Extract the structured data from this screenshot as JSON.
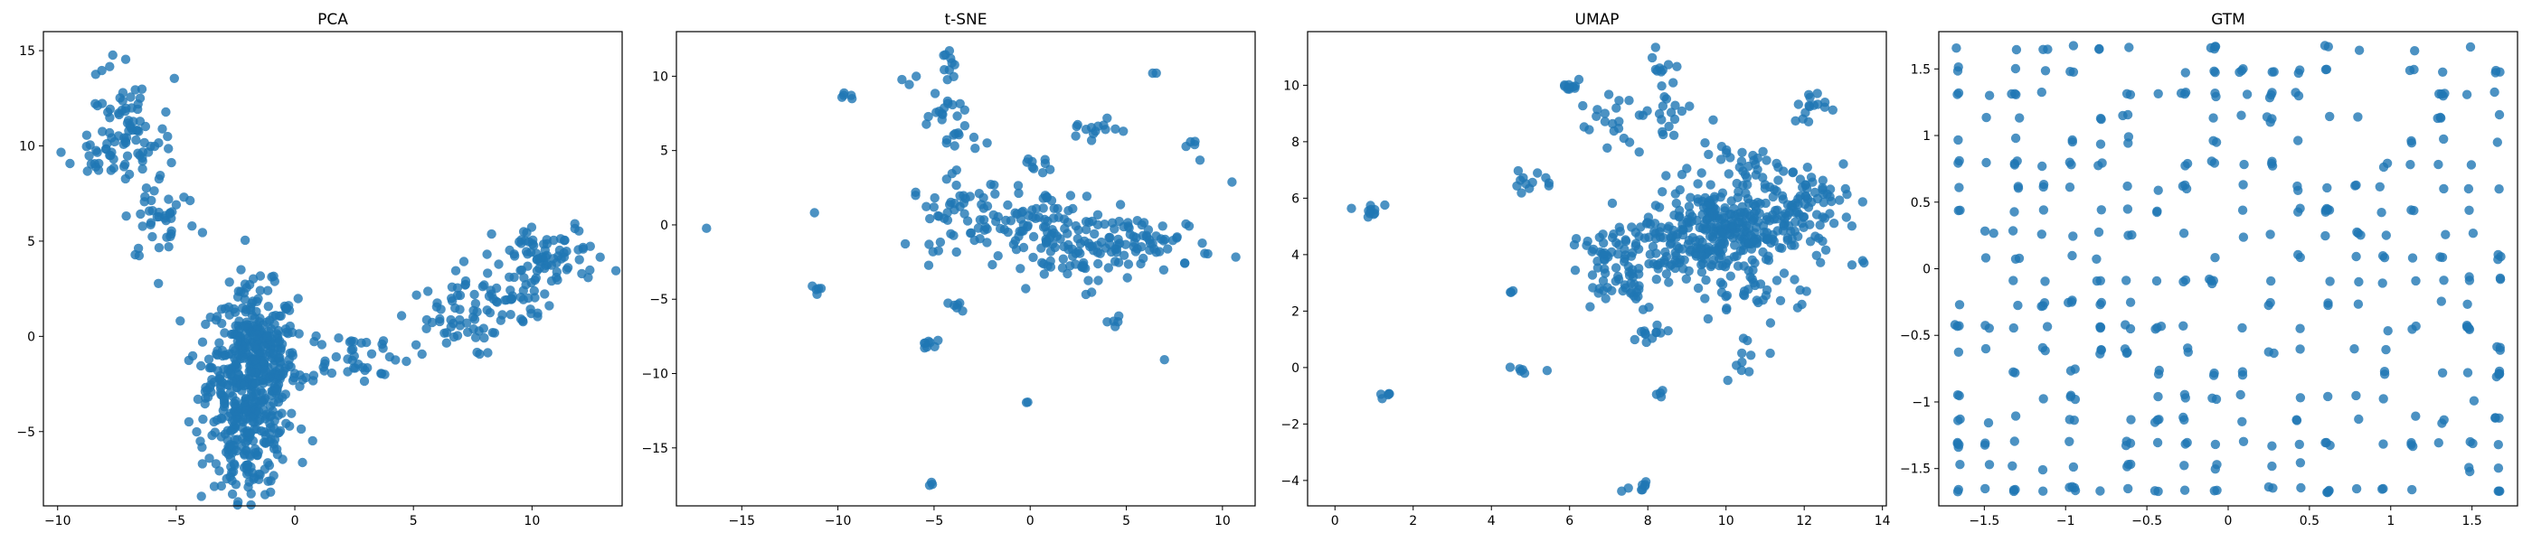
{
  "figure": {
    "marker_color": "#1f77b4"
  },
  "chart_data": [
    {
      "type": "scatter",
      "title": "PCA",
      "xlabel": "",
      "ylabel": "",
      "xlim": [
        -10.6,
        13.8
      ],
      "ylim": [
        -8.9,
        16.0
      ],
      "xticks": [
        -10,
        -5,
        0,
        5,
        10
      ],
      "yticks": [
        -5,
        0,
        5,
        10,
        15
      ],
      "clusters": [
        {
          "x": -1.7,
          "y": -1.5,
          "sx": 0.9,
          "sy": 2.0,
          "n": 420
        },
        {
          "x": -1.9,
          "y": -5.6,
          "sx": 0.9,
          "sy": 1.1,
          "n": 110
        },
        {
          "x": -3.2,
          "y": -3.0,
          "sx": 0.8,
          "sy": 1.2,
          "n": 40
        },
        {
          "x": -6.9,
          "y": 10.5,
          "sx": 0.9,
          "sy": 1.5,
          "n": 70
        },
        {
          "x": -5.6,
          "y": 6.2,
          "sx": 0.8,
          "sy": 1.2,
          "n": 40
        },
        {
          "x": -8.4,
          "y": 9.5,
          "sx": 0.5,
          "sy": 0.7,
          "n": 20
        },
        {
          "x": 2.5,
          "y": -1.0,
          "sx": 1.2,
          "sy": 0.7,
          "n": 45
        },
        {
          "x": 6.5,
          "y": 0.8,
          "sx": 1.1,
          "sy": 0.9,
          "n": 45
        },
        {
          "x": 8.8,
          "y": 2.2,
          "sx": 1.0,
          "sy": 0.9,
          "n": 55
        },
        {
          "x": 10.8,
          "y": 4.2,
          "sx": 1.2,
          "sy": 0.8,
          "n": 70
        },
        {
          "x": -7.5,
          "y": 14.4,
          "sx": 0.4,
          "sy": 0.5,
          "n": 5
        },
        {
          "x": -2.1,
          "y": -7.8,
          "sx": 0.5,
          "sy": 0.4,
          "n": 12
        }
      ]
    },
    {
      "type": "scatter",
      "title": "t-SNE",
      "xlabel": "",
      "ylabel": "",
      "xlim": [
        -18.4,
        11.7
      ],
      "ylim": [
        -18.9,
        13.0
      ],
      "xticks": [
        -15,
        -10,
        -5,
        0,
        5,
        10
      ],
      "yticks": [
        -15,
        -10,
        -5,
        0,
        5,
        10
      ],
      "clusters": [
        {
          "x": 0.5,
          "y": -0.2,
          "sx": 1.6,
          "sy": 1.3,
          "n": 90
        },
        {
          "x": 6.0,
          "y": -1.2,
          "sx": 1.8,
          "sy": 0.9,
          "n": 70
        },
        {
          "x": -3.5,
          "y": 0.8,
          "sx": 1.4,
          "sy": 1.2,
          "n": 55
        },
        {
          "x": 3.0,
          "y": -2.3,
          "sx": 1.0,
          "sy": 1.0,
          "n": 35
        },
        {
          "x": -4.4,
          "y": 7.5,
          "sx": 0.5,
          "sy": 0.6,
          "n": 16
        },
        {
          "x": -3.6,
          "y": 5.8,
          "sx": 0.5,
          "sy": 0.4,
          "n": 10
        },
        {
          "x": -4.2,
          "y": 10.6,
          "sx": 0.3,
          "sy": 0.8,
          "n": 10
        },
        {
          "x": 3.2,
          "y": 6.4,
          "sx": 0.7,
          "sy": 0.3,
          "n": 14
        },
        {
          "x": 0.2,
          "y": 4.0,
          "sx": 0.5,
          "sy": 0.4,
          "n": 9
        },
        {
          "x": -5.2,
          "y": -7.9,
          "sx": 0.3,
          "sy": 0.4,
          "n": 8
        },
        {
          "x": -3.7,
          "y": -5.3,
          "sx": 0.5,
          "sy": 0.2,
          "n": 6
        },
        {
          "x": -9.6,
          "y": 8.6,
          "sx": 0.2,
          "sy": 0.1,
          "n": 5
        },
        {
          "x": -11.1,
          "y": -4.6,
          "sx": 0.2,
          "sy": 0.2,
          "n": 5
        },
        {
          "x": 8.5,
          "y": 5.6,
          "sx": 0.3,
          "sy": 0.5,
          "n": 5
        },
        {
          "x": 4.5,
          "y": -6.5,
          "sx": 0.2,
          "sy": 0.3,
          "n": 5
        },
        {
          "x": -5.1,
          "y": -17.4,
          "sx": 0.05,
          "sy": 0.2,
          "n": 3
        },
        {
          "x": -0.1,
          "y": -12.0,
          "sx": 0.05,
          "sy": 0.1,
          "n": 2
        },
        {
          "x": -16.8,
          "y": -0.2,
          "sx": 0.05,
          "sy": 0.05,
          "n": 1
        },
        {
          "x": -11.3,
          "y": 0.7,
          "sx": 0.05,
          "sy": 0.05,
          "n": 1
        },
        {
          "x": 6.5,
          "y": 10.2,
          "sx": 0.05,
          "sy": 0.05,
          "n": 2
        },
        {
          "x": 7.0,
          "y": -9.1,
          "sx": 0.05,
          "sy": 0.05,
          "n": 1
        },
        {
          "x": 10.5,
          "y": 2.9,
          "sx": 0.05,
          "sy": 0.05,
          "n": 1
        },
        {
          "x": -6.2,
          "y": 9.6,
          "sx": 0.3,
          "sy": 0.4,
          "n": 3
        }
      ]
    },
    {
      "type": "scatter",
      "title": "UMAP",
      "xlabel": "",
      "ylabel": "",
      "xlim": [
        -0.7,
        14.1
      ],
      "ylim": [
        -4.9,
        11.9
      ],
      "xticks": [
        0,
        2,
        4,
        6,
        8,
        10,
        12,
        14
      ],
      "yticks": [
        -4,
        -2,
        0,
        2,
        4,
        6,
        8,
        10
      ],
      "clusters": [
        {
          "x": 9.8,
          "y": 4.8,
          "sx": 0.9,
          "sy": 0.8,
          "n": 260
        },
        {
          "x": 11.2,
          "y": 5.4,
          "sx": 0.9,
          "sy": 0.9,
          "n": 90
        },
        {
          "x": 8.0,
          "y": 4.2,
          "sx": 0.7,
          "sy": 0.7,
          "n": 70
        },
        {
          "x": 7.2,
          "y": 3.0,
          "sx": 0.6,
          "sy": 0.5,
          "n": 35
        },
        {
          "x": 10.9,
          "y": 2.6,
          "sx": 0.8,
          "sy": 0.4,
          "n": 30
        },
        {
          "x": 8.6,
          "y": 8.9,
          "sx": 0.5,
          "sy": 0.6,
          "n": 20
        },
        {
          "x": 10.4,
          "y": 7.3,
          "sx": 0.6,
          "sy": 0.5,
          "n": 25
        },
        {
          "x": 12.3,
          "y": 9.2,
          "sx": 0.3,
          "sy": 0.3,
          "n": 15
        },
        {
          "x": 12.4,
          "y": 6.2,
          "sx": 0.4,
          "sy": 0.4,
          "n": 25
        },
        {
          "x": 6.0,
          "y": 10.0,
          "sx": 0.1,
          "sy": 0.2,
          "n": 10
        },
        {
          "x": 8.3,
          "y": 10.6,
          "sx": 0.2,
          "sy": 0.3,
          "n": 10
        },
        {
          "x": 1.0,
          "y": 5.6,
          "sx": 0.25,
          "sy": 0.1,
          "n": 10
        },
        {
          "x": 5.0,
          "y": 6.6,
          "sx": 0.3,
          "sy": 0.2,
          "n": 12
        },
        {
          "x": 6.9,
          "y": 8.4,
          "sx": 0.4,
          "sy": 0.4,
          "n": 12
        },
        {
          "x": 6.7,
          "y": 4.2,
          "sx": 0.4,
          "sy": 0.3,
          "n": 12
        },
        {
          "x": 8.0,
          "y": 1.2,
          "sx": 0.4,
          "sy": 0.2,
          "n": 12
        },
        {
          "x": 10.5,
          "y": 0.5,
          "sx": 0.3,
          "sy": 0.4,
          "n": 10
        },
        {
          "x": 7.7,
          "y": -4.2,
          "sx": 0.2,
          "sy": 0.1,
          "n": 8
        },
        {
          "x": 4.9,
          "y": -0.1,
          "sx": 0.2,
          "sy": 0.15,
          "n": 6
        },
        {
          "x": 1.2,
          "y": -1.0,
          "sx": 0.1,
          "sy": 0.1,
          "n": 5
        },
        {
          "x": 8.3,
          "y": -0.9,
          "sx": 0.1,
          "sy": 0.1,
          "n": 4
        },
        {
          "x": 4.5,
          "y": 2.7,
          "sx": 0.05,
          "sy": 0.05,
          "n": 3
        },
        {
          "x": 13.5,
          "y": 3.7,
          "sx": 0.1,
          "sy": 0.05,
          "n": 3
        },
        {
          "x": 7.0,
          "y": 9.5,
          "sx": 0.3,
          "sy": 0.2,
          "n": 6
        }
      ]
    },
    {
      "type": "scatter",
      "title": "GTM",
      "xlabel": "",
      "ylabel": "",
      "xlim": [
        -1.78,
        1.78
      ],
      "ylim": [
        -1.78,
        1.78
      ],
      "xticks": [
        -1.5,
        -1.0,
        -0.5,
        0.0,
        0.5,
        1.0,
        1.5
      ],
      "yticks": [
        -1.5,
        -1.0,
        -0.5,
        0.0,
        0.5,
        1.0,
        1.5
      ],
      "grid_nodes": 20,
      "grid_range": [
        -1.66,
        1.66
      ],
      "n_points": 420
    }
  ]
}
